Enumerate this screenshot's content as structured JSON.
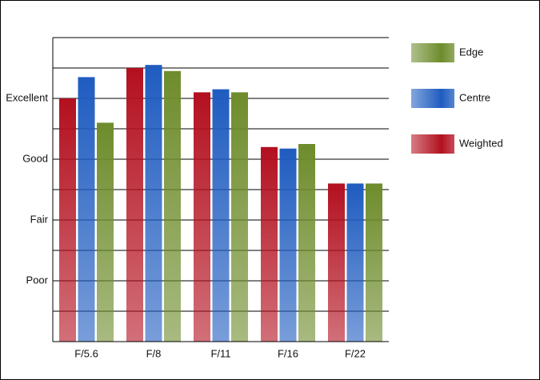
{
  "chart_data": {
    "type": "bar",
    "categories": [
      "F/5.6",
      "F/8",
      "F/11",
      "F/16",
      "F/22"
    ],
    "series": [
      {
        "name": "Weighted",
        "color": "#b3101f",
        "values": [
          8.0,
          9.0,
          8.2,
          6.4,
          5.2
        ]
      },
      {
        "name": "Centre",
        "color": "#1f5cc0",
        "values": [
          8.7,
          9.1,
          8.3,
          6.35,
          5.2
        ]
      },
      {
        "name": "Edge",
        "color": "#6e8c2c",
        "values": [
          7.2,
          8.9,
          8.2,
          6.5,
          5.2
        ]
      }
    ],
    "ylim": [
      0,
      10
    ],
    "yticks": [
      {
        "value": 2,
        "label": "Poor"
      },
      {
        "value": 4,
        "label": "Fair"
      },
      {
        "value": 6,
        "label": "Good"
      },
      {
        "value": 8,
        "label": "Excellent"
      }
    ],
    "minor_yticks": [
      1,
      3,
      5,
      7,
      9,
      10
    ],
    "grid": true,
    "legend": "right"
  }
}
